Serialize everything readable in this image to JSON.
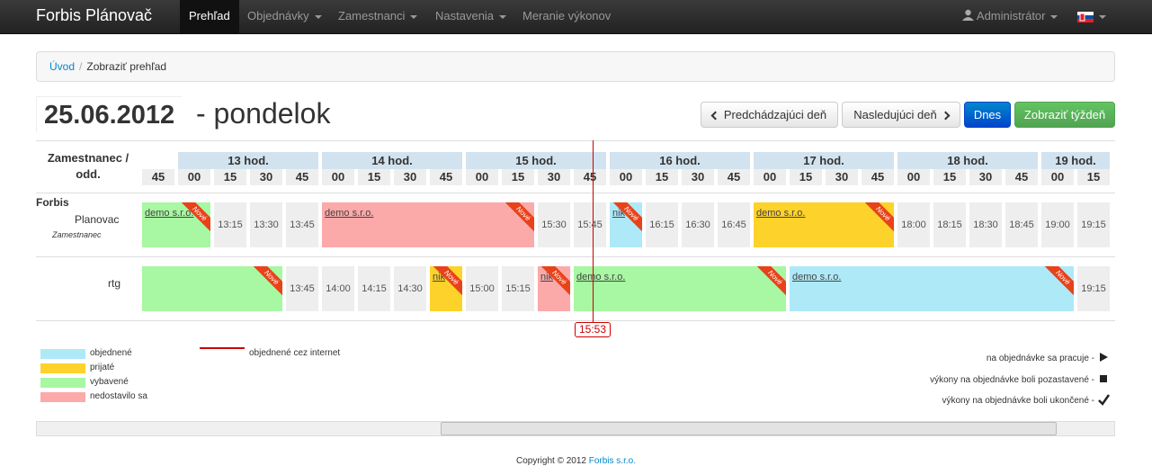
{
  "navbar": {
    "brand": "Forbis Plánovač",
    "items": [
      "Prehľad",
      "Objednávky",
      "Zamestnanci",
      "Nastavenia",
      "Meranie výkonov"
    ],
    "user": "Administrátor"
  },
  "breadcrumb": [
    "Úvod",
    "Zobraziť prehľad"
  ],
  "header": {
    "date": "25.06.2012",
    "day": "- pondelok",
    "buttons": [
      "Predchádzajúci deň",
      "Nasledujúci deň",
      "Dnes",
      "Zobraziť týždeň"
    ]
  },
  "schedule": {
    "corner": "Zamestnanec / odd.",
    "now": "15:53",
    "hours": [
      {
        "quarters": [
          "45"
        ]
      },
      {
        "label": "13 hod.",
        "quarters": [
          "00",
          "15",
          "30",
          "45"
        ]
      },
      {
        "label": "14 hod.",
        "quarters": [
          "00",
          "15",
          "30",
          "45"
        ]
      },
      {
        "label": "15 hod.",
        "quarters": [
          "00",
          "15",
          "30",
          "45"
        ]
      },
      {
        "label": "16 hod.",
        "quarters": [
          "00",
          "15",
          "30",
          "45"
        ]
      },
      {
        "label": "17 hod.",
        "quarters": [
          "00",
          "15",
          "30",
          "45"
        ]
      },
      {
        "label": "18 hod.",
        "quarters": [
          "00",
          "15",
          "30",
          "45"
        ]
      },
      {
        "label": "19 hod.",
        "quarters": [
          "00",
          "15"
        ]
      }
    ],
    "rows": [
      {
        "name": "Forbis",
        "surname": "Planovac",
        "role": "Zamestnanec",
        "cells": [
          {
            "color": "#a8f7a2",
            "slots": 2,
            "client": "demo s.r.o.",
            "badge": "Nové"
          },
          {
            "time": "13:15"
          },
          {
            "time": "13:30"
          },
          {
            "time": "13:45"
          },
          {
            "color": "#fca9a9",
            "slots": 6,
            "client": "demo s.r.o.",
            "badge": "Nové"
          },
          {
            "time": "15:30"
          },
          {
            "time": "15:45"
          },
          {
            "color": "#aee9f8",
            "slots": 1,
            "client": "nik",
            "badge": "Nové"
          },
          {
            "time": "16:15"
          },
          {
            "time": "16:30"
          },
          {
            "time": "16:45"
          },
          {
            "color": "#fdd22a",
            "slots": 4,
            "client": "demo s.r.o.",
            "badge": "Nové"
          },
          {
            "time": "18:00"
          },
          {
            "time": "18:15"
          },
          {
            "time": "18:30"
          },
          {
            "time": "18:45"
          },
          {
            "time": "19:00"
          },
          {
            "time": "19:15"
          }
        ]
      },
      {
        "name": "rtg",
        "cells": [
          {
            "color": "#a8f7a2",
            "slots": 4,
            "badge": "Nové"
          },
          {
            "time": "13:45"
          },
          {
            "time": "14:00"
          },
          {
            "time": "14:15"
          },
          {
            "time": "14:30"
          },
          {
            "color": "#fdd22a",
            "slots": 1,
            "client": "nik",
            "badge": "Nové"
          },
          {
            "time": "15:00"
          },
          {
            "time": "15:15"
          },
          {
            "color": "#fca9a9",
            "slots": 1,
            "client": "nik",
            "badge": "Nové"
          },
          {
            "color": "#a8f7a2",
            "slots": 6,
            "client": "demo s.r.o.",
            "badge": "Nové"
          },
          {
            "color": "#aee9f8",
            "slots": 8,
            "client": "demo s.r.o.",
            "badge": "Nové"
          },
          {
            "time": "19:15"
          }
        ]
      }
    ]
  },
  "legend": {
    "items": [
      {
        "color": "#aee9f8",
        "label": "objednené"
      },
      {
        "color": "#fdd22a",
        "label": "prijaté"
      },
      {
        "color": "#a8f7a2",
        "label": "vybavené"
      },
      {
        "color": "#fca9a9",
        "label": "nedostavilo sa"
      }
    ],
    "internet": "objednené cez internet",
    "icons": [
      "na objednávke sa pracuje -",
      "výkony na objednávke boli pozastavené -",
      "výkony na objednávke boli ukončené -"
    ]
  },
  "footer": {
    "text": "Copyright © 2012",
    "link": "Forbis s.r.o."
  }
}
